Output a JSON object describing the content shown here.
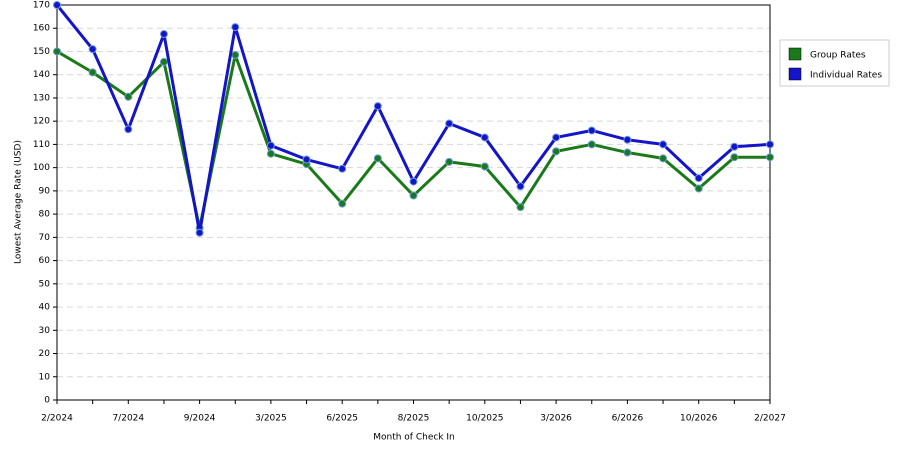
{
  "chart_data": {
    "type": "line",
    "x_label": "Month of Check In",
    "y_label": "Lowest Average Rate (USD)",
    "categories": [
      "2/2024",
      null,
      "7/2024",
      null,
      "9/2024",
      null,
      "3/2025",
      null,
      "6/2025",
      null,
      "8/2025",
      null,
      "10/2025",
      null,
      "3/2026",
      null,
      "6/2026",
      null,
      "10/2026",
      null,
      "2/2027"
    ],
    "series": [
      {
        "name": "Group Rates",
        "color": "#1a7a1a",
        "values": [
          150,
          141,
          130.5,
          145.5,
          74,
          148.5,
          106,
          101.5,
          84.5,
          104,
          88,
          102.5,
          100.5,
          83,
          107,
          110,
          106.5,
          104,
          91,
          104.5,
          104.5
        ]
      },
      {
        "name": "Individual Rates",
        "color": "#1414c8",
        "values": [
          170,
          151,
          116.5,
          157.5,
          72,
          160.5,
          109.5,
          103.5,
          99.5,
          126.5,
          94,
          119,
          113,
          92,
          113,
          116,
          112,
          110,
          95.5,
          109,
          110
        ]
      }
    ],
    "ylim": [
      0,
      170
    ],
    "yticks": [
      0,
      10,
      20,
      30,
      40,
      50,
      60,
      70,
      80,
      90,
      100,
      110,
      120,
      130,
      140,
      150,
      160,
      170
    ],
    "grid": true,
    "legend": "right"
  }
}
